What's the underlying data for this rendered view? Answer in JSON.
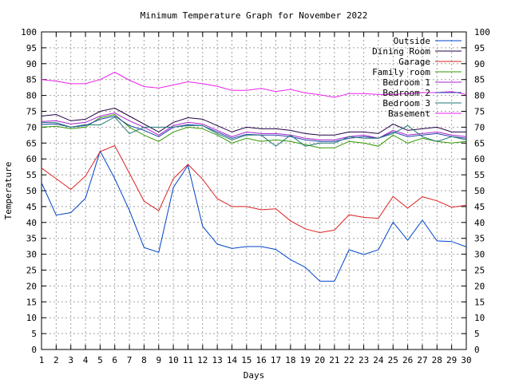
{
  "chart_data": {
    "type": "line",
    "title": "Minimum Temperature Graph for November 2022",
    "xlabel": "Days",
    "ylabel": "Temperature",
    "xlim": [
      1,
      30
    ],
    "ylim": [
      0,
      100
    ],
    "xticks": [
      1,
      2,
      3,
      4,
      5,
      6,
      7,
      8,
      9,
      10,
      11,
      12,
      13,
      14,
      15,
      16,
      17,
      18,
      19,
      20,
      21,
      22,
      23,
      24,
      25,
      26,
      27,
      28,
      29,
      30
    ],
    "yticks": [
      0,
      5,
      10,
      15,
      20,
      25,
      30,
      35,
      40,
      45,
      50,
      55,
      60,
      65,
      70,
      75,
      80,
      85,
      90,
      95,
      100
    ],
    "grid": true,
    "legend_position": "top-right",
    "x": [
      1,
      2,
      3,
      4,
      5,
      6,
      7,
      8,
      9,
      10,
      11,
      12,
      13,
      14,
      15,
      16,
      17,
      18,
      19,
      20,
      21,
      22,
      23,
      24,
      25,
      26,
      27,
      28,
      29,
      30
    ],
    "series": [
      {
        "name": "Outside",
        "color": "#0044cc",
        "values": [
          52.5,
          42.3,
          43.1,
          47.6,
          62.5,
          53.8,
          43.8,
          32.1,
          30.6,
          51.0,
          58.0,
          38.8,
          33.2,
          31.8,
          32.4,
          32.4,
          31.5,
          28.3,
          25.9,
          21.5,
          21.5,
          31.4,
          29.9,
          31.4,
          40.1,
          34.4,
          40.7,
          34.2,
          34.0,
          32.3
        ]
      },
      {
        "name": "Dining Room",
        "color": "#220044",
        "values": [
          73.5,
          74.0,
          72.0,
          72.5,
          75.0,
          76.0,
          73.5,
          71.0,
          68.5,
          71.5,
          73.0,
          72.5,
          70.5,
          68.5,
          70.0,
          69.5,
          69.5,
          69.0,
          68.0,
          67.5,
          67.5,
          68.5,
          68.5,
          68.0,
          71.0,
          69.0,
          69.5,
          70.0,
          68.5,
          68.5
        ]
      },
      {
        "name": "Garage",
        "color": "#dd2222",
        "values": [
          57.1,
          53.8,
          50.4,
          54.6,
          62.3,
          64.2,
          55.5,
          46.7,
          43.7,
          53.8,
          58.3,
          53.6,
          47.5,
          45.0,
          45.0,
          44.0,
          44.3,
          40.5,
          38.0,
          36.8,
          37.6,
          42.4,
          41.6,
          41.3,
          48.2,
          44.5,
          48.1,
          46.8,
          44.8,
          45.4
        ]
      },
      {
        "name": "Family room",
        "color": "#339900",
        "values": [
          70.0,
          70.3,
          69.5,
          70.0,
          73.0,
          74.0,
          70.0,
          67.5,
          65.5,
          68.5,
          70.0,
          69.5,
          67.5,
          65.0,
          66.5,
          65.5,
          66.0,
          65.5,
          64.5,
          63.5,
          63.5,
          65.5,
          65.0,
          64.0,
          67.5,
          65.0,
          66.5,
          65.5,
          65.0,
          65.5
        ]
      },
      {
        "name": "Bedroom 1",
        "color": "#aa22cc",
        "values": [
          71.8,
          72.0,
          71.0,
          71.5,
          73.5,
          74.5,
          72.0,
          70.0,
          67.5,
          70.5,
          71.5,
          71.0,
          69.0,
          67.0,
          68.5,
          68.0,
          68.0,
          67.5,
          66.5,
          66.0,
          66.0,
          67.0,
          67.5,
          66.5,
          69.0,
          67.5,
          68.0,
          68.5,
          67.5,
          67.0
        ]
      },
      {
        "name": "Bedroom 2",
        "color": "#2244aa",
        "values": [
          70.9,
          71.0,
          70.0,
          70.5,
          72.5,
          73.5,
          70.5,
          69.0,
          67.0,
          70.0,
          70.8,
          70.5,
          68.5,
          66.5,
          67.8,
          67.5,
          67.5,
          67.0,
          66.0,
          65.5,
          65.5,
          66.5,
          67.0,
          66.5,
          68.5,
          67.0,
          67.5,
          68.0,
          67.0,
          66.5
        ]
      },
      {
        "name": "Bedroom 3",
        "color": "#227777",
        "values": [
          71.5,
          71.4,
          70.0,
          70.8,
          70.7,
          73.2,
          68.0,
          70.0,
          70.0,
          70.0,
          70.5,
          70.5,
          68.0,
          66.0,
          67.5,
          67.5,
          64.0,
          67.5,
          64.0,
          65.0,
          65.0,
          67.0,
          66.5,
          66.5,
          68.0,
          70.5,
          67.0,
          65.5,
          67.0,
          66.0
        ]
      },
      {
        "name": "Basement",
        "color": "#ee22ee",
        "values": [
          85.0,
          84.5,
          83.7,
          83.7,
          85.0,
          87.3,
          84.8,
          82.8,
          82.3,
          83.3,
          84.3,
          83.7,
          82.9,
          81.6,
          81.6,
          82.2,
          81.2,
          81.9,
          80.8,
          80.2,
          79.4,
          80.6,
          80.6,
          80.3,
          80.3,
          80.6,
          80.9,
          80.9,
          81.2,
          80.3
        ]
      }
    ]
  }
}
